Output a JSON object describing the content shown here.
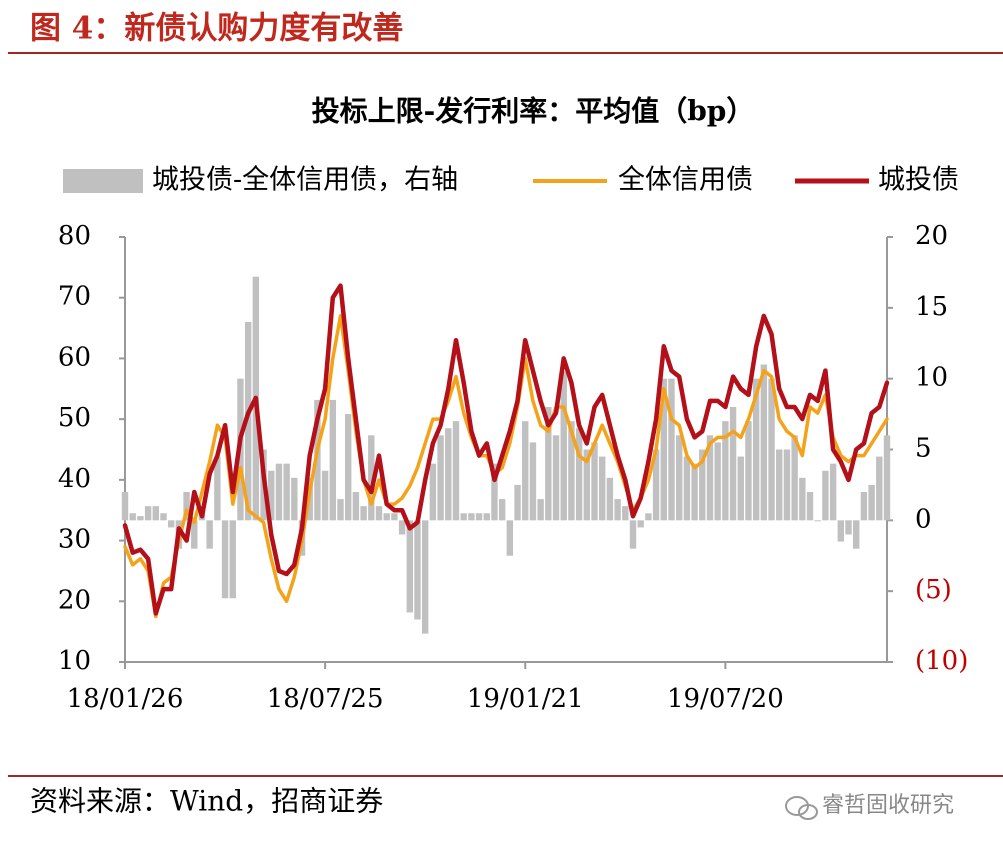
{
  "header": {
    "title": "图 4：新债认购力度有改善"
  },
  "chart_data": {
    "type": "combo",
    "title": "投标上限-发行利率：平均值（bp）",
    "categories": [
      "18/01/26",
      null,
      null,
      null,
      null,
      null,
      null,
      null,
      null,
      null,
      null,
      null,
      null,
      null,
      null,
      null,
      null,
      null,
      null,
      null,
      null,
      null,
      null,
      null,
      null,
      null,
      "18/07/25",
      null,
      null,
      null,
      null,
      null,
      null,
      null,
      null,
      null,
      null,
      null,
      null,
      null,
      null,
      null,
      null,
      null,
      null,
      null,
      null,
      null,
      null,
      null,
      null,
      null,
      "19/01/21",
      null,
      null,
      null,
      null,
      null,
      null,
      null,
      null,
      null,
      null,
      null,
      null,
      null,
      null,
      null,
      null,
      null,
      null,
      null,
      null,
      null,
      null,
      null,
      null,
      null,
      "19/07/20",
      null,
      null,
      null,
      null,
      null,
      null,
      null,
      null,
      null,
      null,
      null,
      null,
      null,
      null,
      null,
      null,
      null,
      null,
      null,
      null,
      null
    ],
    "series": [
      {
        "name": "城投债-全体信用债，右轴",
        "type": "bar",
        "axis": "y2",
        "color": "#c0c0c0",
        "values": [
          2,
          0.5,
          0.3,
          1,
          1,
          0.5,
          -0.5,
          -2,
          2,
          -2,
          1,
          -2,
          4.5,
          -5.5,
          -5.5,
          10,
          14,
          17.2,
          5,
          3.5,
          4,
          4,
          3,
          -2.5,
          3,
          8.5,
          3.5,
          8.5,
          1.5,
          7.5,
          2,
          1,
          6,
          1,
          0.5,
          0.5,
          -1,
          -6.5,
          -7,
          -8,
          4,
          6,
          6.5,
          7,
          0.5,
          0.5,
          0.5,
          0.5,
          4,
          1.5,
          -2.5,
          2.5,
          7,
          5.5,
          1.5,
          8,
          6,
          10.5,
          7,
          6.5,
          5,
          5.5,
          4.5,
          3,
          1.5,
          1,
          -2,
          -0.5,
          0.5,
          5,
          10,
          10,
          6,
          4.5,
          4,
          5,
          6,
          5.5,
          7,
          8,
          4.5,
          7,
          10,
          11,
          10,
          5,
          5,
          6,
          3,
          2,
          0,
          3.5,
          4,
          -1.5,
          -1,
          -2,
          2,
          2.5,
          4.5,
          6
        ]
      },
      {
        "name": "全体信用债",
        "type": "line",
        "color": "#f5a21b",
        "values": [
          29,
          26,
          27,
          25,
          17.5,
          23,
          24,
          30,
          35,
          33,
          38,
          43,
          49,
          47,
          36,
          42,
          35,
          34,
          33,
          27,
          22,
          20,
          24,
          30,
          38,
          45,
          50,
          60,
          67,
          58,
          48,
          40,
          36,
          40,
          36,
          36,
          37,
          39,
          42,
          46,
          50,
          50,
          53,
          57,
          51,
          47,
          44,
          44,
          41,
          42,
          46,
          52,
          60,
          53,
          49,
          48,
          52,
          52,
          48,
          44,
          43,
          46,
          49,
          46,
          43,
          39,
          35,
          37,
          40,
          45,
          55,
          50,
          49,
          44,
          42,
          43,
          46,
          47,
          47,
          48,
          47,
          50,
          54,
          58,
          57,
          50,
          48,
          47,
          44,
          52,
          51,
          54,
          47,
          44,
          43,
          44,
          44,
          46,
          48,
          50
        ]
      },
      {
        "name": "城投债",
        "type": "line",
        "color": "#b3101a",
        "values": [
          32.5,
          28,
          28.5,
          27,
          18,
          22,
          22,
          32,
          30,
          38,
          34,
          41,
          44,
          49,
          38,
          47,
          51,
          53.5,
          41,
          31,
          25,
          24.5,
          26,
          32,
          44,
          50,
          55,
          70,
          72,
          60,
          50,
          40,
          38,
          44,
          36,
          35,
          35,
          32,
          33,
          40,
          46,
          49,
          55,
          63,
          56,
          48,
          44,
          46,
          40,
          44,
          48,
          53,
          63,
          58,
          53,
          49,
          51,
          60,
          56,
          49,
          46,
          52,
          54,
          49,
          44,
          40,
          34,
          37,
          43,
          50,
          62,
          58,
          57,
          50,
          47,
          48,
          53,
          53,
          52,
          57,
          55,
          54,
          62,
          67,
          64,
          55,
          52,
          52,
          50,
          54,
          53,
          58,
          45,
          43,
          40,
          45,
          46,
          51,
          52,
          56
        ]
      }
    ],
    "ylim": [
      10,
      80
    ],
    "yticks": [
      10,
      20,
      30,
      40,
      50,
      60,
      70,
      80
    ],
    "y2lim": [
      -10,
      20
    ],
    "y2ticks": [
      {
        "value": -10,
        "label": "(10)"
      },
      {
        "value": -5,
        "label": "(5)"
      },
      0,
      5,
      10,
      15,
      20
    ],
    "y2_negative_label_color": "#c00000",
    "grid": false
  },
  "footer": {
    "source": "资料来源：Wind，招商证券",
    "watermark": "睿哲固收研究"
  }
}
